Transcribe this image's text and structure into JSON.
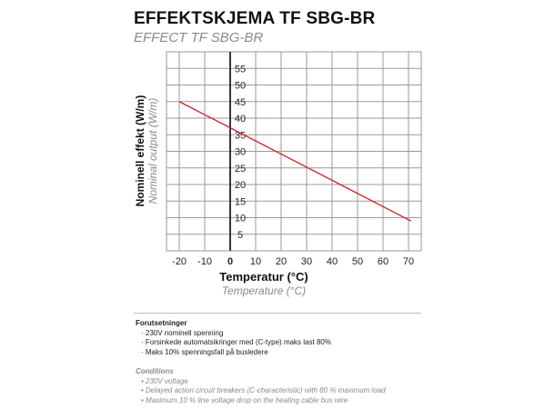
{
  "header": {
    "title": "EFFEKTSKJEMA TF SBG-BR",
    "subtitle": "EFFECT TF SBG-BR"
  },
  "chart_data": {
    "type": "line",
    "title": "EFFEKTSKJEMA TF SBG-BR",
    "subtitle": "EFFECT TF SBG-BR",
    "xlabel": "Temperatur (°C)",
    "xlabel_en": "Temperature (°C)",
    "ylabel": "Nominell effekt (W/m)",
    "ylabel_en": "Nominal output (W/m)",
    "xlim": [
      -25,
      75
    ],
    "ylim": [
      0,
      60
    ],
    "x_ticks": [
      -20,
      -10,
      0,
      10,
      20,
      30,
      40,
      50,
      60,
      70
    ],
    "y_ticks": [
      5,
      10,
      15,
      20,
      25,
      30,
      35,
      40,
      45,
      50,
      55
    ],
    "grid": true,
    "line_color": "#d0202a",
    "series": [
      {
        "x": [
          -20,
          71
        ],
        "y": [
          45,
          9
        ]
      }
    ]
  },
  "conditions_no": {
    "heading": "Forutsetninger",
    "items": [
      "· 230V nominell spenning",
      "· Forsinkede automatsikringer med (C-type) maks last 80%",
      "· Maks 10% spenningsfall på busledere"
    ]
  },
  "conditions_en": {
    "heading": "Conditions",
    "items": [
      "• 230V voltage",
      "• Delayed action circuit breakers (C-characteristic) with 80 % maximum load",
      "• Maximum 10 % line voltage drop on the heating cable bus wire"
    ]
  }
}
